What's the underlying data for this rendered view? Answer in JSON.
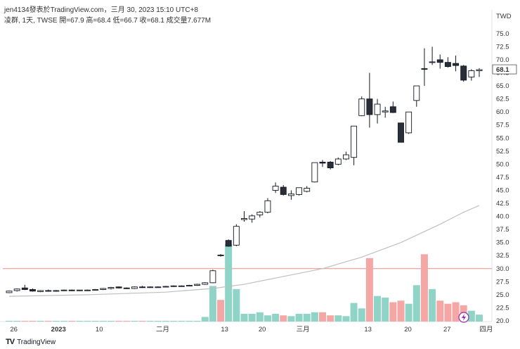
{
  "header": {
    "published": "jen4134發表於TradingView.com，三月 30, 2023 15:10 UTC+8",
    "symbol_line": "凌群, 1天, TWSE  開=67.9  高=68.4  低=66.7  收=68.1  成交量7.677M"
  },
  "brand": {
    "logo": "TV",
    "name": "TradingView"
  },
  "colors": {
    "up_border": "#131722",
    "down_fill": "#2a2e39",
    "vol_up": "#8fd4c7",
    "vol_down": "#f5a7a5",
    "hline": "#f28b82",
    "ma": "#bfbfbf",
    "last_label_bg": "#ffffff"
  },
  "chart_data": {
    "type": "candlestick",
    "currency": "TWD",
    "last_price": "68.1",
    "ylim": [
      20,
      77
    ],
    "y_ticks": [
      "75.0",
      "72.5",
      "70.0",
      "67.5",
      "65.0",
      "62.5",
      "60.0",
      "57.5",
      "55.0",
      "52.5",
      "50.0",
      "47.5",
      "45.0",
      "42.5",
      "40.0",
      "37.5",
      "35.0",
      "32.5",
      "30.0",
      "27.5",
      "25.0",
      "22.5",
      "20.0"
    ],
    "horizontal_line": 30.0,
    "x_labels": [
      {
        "text": "26",
        "idx": 0.6,
        "bold": false
      },
      {
        "text": "2023",
        "idx": 6.3,
        "bold": true
      },
      {
        "text": "10",
        "idx": 11.5,
        "bold": false
      },
      {
        "text": "二月",
        "idx": 19.6,
        "bold": false
      },
      {
        "text": "13",
        "idx": 27.5,
        "bold": false
      },
      {
        "text": "20",
        "idx": 32.3,
        "bold": false
      },
      {
        "text": "三月",
        "idx": 37.5,
        "bold": false
      },
      {
        "text": "13",
        "idx": 45.8,
        "bold": false
      },
      {
        "text": "20",
        "idx": 50.9,
        "bold": false
      },
      {
        "text": "27",
        "idx": 55.9,
        "bold": false
      },
      {
        "text": "四月",
        "idx": 60.9,
        "bold": false
      }
    ],
    "candles": [
      [
        25.4,
        25.8,
        25.3,
        25.7
      ],
      [
        25.8,
        26.2,
        25.6,
        26.1
      ],
      [
        26.3,
        26.9,
        25.9,
        26.0
      ],
      [
        26.0,
        26.2,
        25.6,
        25.7
      ],
      [
        25.6,
        25.9,
        25.5,
        25.8
      ],
      [
        25.8,
        26.0,
        25.6,
        25.7
      ],
      [
        25.7,
        25.9,
        25.6,
        25.8
      ],
      [
        25.8,
        26.0,
        25.7,
        25.9
      ],
      [
        25.9,
        26.0,
        25.7,
        25.8
      ],
      [
        25.8,
        25.9,
        25.7,
        25.9
      ],
      [
        25.9,
        26.0,
        25.8,
        25.9
      ],
      [
        25.9,
        26.1,
        25.8,
        26.0
      ],
      [
        26.0,
        26.3,
        25.9,
        26.2
      ],
      [
        26.2,
        26.5,
        26.0,
        26.4
      ],
      [
        26.5,
        26.6,
        26.2,
        26.3
      ],
      [
        26.3,
        26.4,
        26.1,
        26.2
      ],
      [
        26.2,
        26.6,
        26.1,
        26.5
      ],
      [
        26.5,
        26.7,
        26.3,
        26.4
      ],
      [
        26.4,
        26.6,
        26.3,
        26.5
      ],
      [
        26.5,
        26.6,
        26.4,
        26.5
      ],
      [
        26.5,
        26.7,
        26.4,
        26.6
      ],
      [
        26.6,
        26.8,
        26.5,
        26.7
      ],
      [
        26.7,
        26.8,
        26.6,
        26.7
      ],
      [
        26.7,
        26.9,
        26.6,
        26.8
      ],
      [
        26.8,
        27.1,
        26.7,
        27.0
      ],
      [
        27.0,
        27.4,
        26.9,
        27.3
      ],
      [
        27.3,
        29.8,
        27.2,
        29.6
      ],
      [
        32.6,
        32.8,
        32.3,
        32.6
      ],
      [
        35.4,
        35.6,
        34.2,
        34.3
      ],
      [
        34.5,
        38.5,
        34.3,
        38.1
      ],
      [
        39.4,
        41.0,
        39.0,
        39.6
      ],
      [
        39.5,
        40.4,
        38.8,
        40.1
      ],
      [
        40.3,
        41.0,
        39.8,
        40.8
      ],
      [
        40.8,
        43.5,
        40.6,
        43.0
      ],
      [
        45.0,
        46.5,
        44.5,
        45.8
      ],
      [
        45.6,
        46.0,
        44.0,
        44.2
      ],
      [
        44.0,
        45.0,
        43.2,
        44.3
      ],
      [
        44.2,
        45.5,
        44.0,
        45.5
      ],
      [
        44.8,
        45.8,
        44.6,
        45.4
      ],
      [
        46.6,
        50.3,
        46.5,
        50.3
      ],
      [
        50.4,
        50.8,
        49.5,
        50.2
      ],
      [
        50.4,
        50.6,
        49.0,
        49.3
      ],
      [
        50.0,
        51.3,
        49.8,
        51.0
      ],
      [
        51.0,
        52.4,
        50.8,
        51.8
      ],
      [
        51.3,
        57.3,
        49.8,
        57.3
      ],
      [
        59.3,
        63.0,
        59.2,
        62.5
      ],
      [
        62.5,
        67.5,
        57.0,
        59.5
      ],
      [
        59.5,
        62.5,
        57.8,
        61.5
      ],
      [
        60.0,
        61.0,
        58.9,
        60.2
      ],
      [
        61.0,
        62.0,
        59.8,
        59.9
      ],
      [
        57.9,
        57.9,
        54.2,
        54.2
      ],
      [
        56.0,
        60.0,
        55.8,
        60.0
      ],
      [
        62.2,
        65.0,
        61.0,
        65.0
      ],
      [
        68.3,
        72.2,
        65.0,
        68.2
      ],
      [
        69.5,
        72.5,
        69.0,
        69.6
      ],
      [
        70.0,
        71.0,
        68.3,
        69.5
      ],
      [
        69.5,
        70.5,
        68.5,
        68.7
      ],
      [
        69.3,
        70.8,
        67.8,
        68.9
      ],
      [
        68.8,
        69.0,
        65.8,
        66.1
      ],
      [
        66.7,
        68.2,
        66.0,
        67.9
      ],
      [
        67.9,
        68.4,
        66.7,
        68.1
      ]
    ],
    "volume_pct": [
      1,
      1,
      1,
      1,
      1,
      1,
      1,
      1,
      1,
      1,
      1,
      1,
      1,
      1,
      1,
      1,
      1,
      1,
      1,
      1,
      1,
      1,
      1,
      1,
      1,
      6,
      46,
      28,
      100,
      42,
      10,
      10,
      12,
      8,
      10,
      8,
      7,
      10,
      10,
      12,
      12,
      8,
      8,
      7,
      24,
      17,
      82,
      33,
      31,
      25,
      27,
      23,
      47,
      87,
      42,
      27,
      23,
      25,
      21,
      14,
      9
    ],
    "volume_up": [
      true,
      true,
      false,
      false,
      true,
      false,
      true,
      true,
      false,
      true,
      true,
      true,
      true,
      true,
      false,
      false,
      true,
      false,
      true,
      true,
      true,
      true,
      true,
      true,
      true,
      true,
      true,
      false,
      true,
      true,
      true,
      true,
      true,
      true,
      true,
      false,
      true,
      true,
      true,
      true,
      false,
      false,
      true,
      true,
      true,
      true,
      false,
      true,
      true,
      false,
      false,
      true,
      true,
      false,
      true,
      false,
      false,
      false,
      false,
      true,
      true
    ],
    "ma": [
      [
        0,
        24.7
      ],
      [
        10,
        25.0
      ],
      [
        20,
        25.5
      ],
      [
        26,
        26.2
      ],
      [
        30,
        27.0
      ],
      [
        35,
        28.5
      ],
      [
        40,
        30.0
      ],
      [
        45,
        32.2
      ],
      [
        50,
        35.0
      ],
      [
        55,
        38.5
      ],
      [
        58,
        40.8
      ],
      [
        60,
        42.1
      ]
    ]
  }
}
